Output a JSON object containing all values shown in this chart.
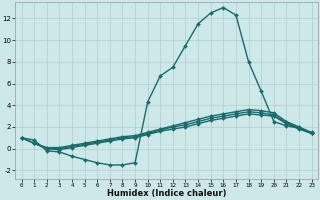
{
  "xlabel": "Humidex (Indice chaleur)",
  "ylabel": "",
  "xlim": [
    -0.5,
    23.5
  ],
  "ylim": [
    -2.8,
    13.5
  ],
  "xticks": [
    0,
    1,
    2,
    3,
    4,
    5,
    6,
    7,
    8,
    9,
    10,
    11,
    12,
    13,
    14,
    15,
    16,
    17,
    18,
    19,
    20,
    21,
    22,
    23
  ],
  "yticks": [
    -2,
    0,
    2,
    4,
    6,
    8,
    10,
    12
  ],
  "background_color": "#cde8e8",
  "grid_color": "#b8d0d0",
  "line_color": "#1a6b6b",
  "line_width": 1.0,
  "marker": "D",
  "marker_size": 2.0,
  "lines": [
    [
      1,
      0.8,
      -0.2,
      -0.3,
      -0.7,
      -1.0,
      -1.3,
      -1.5,
      -1.5,
      -1.3,
      4.3,
      6.7,
      7.5,
      9.5,
      11.5,
      12.5,
      13.0,
      12.3,
      8.0,
      5.3,
      2.5,
      2.1,
      1.9,
      1.4
    ],
    [
      1,
      0.5,
      0.0,
      -0.1,
      0.1,
      0.3,
      0.5,
      0.7,
      0.9,
      1.0,
      1.3,
      1.6,
      1.8,
      2.0,
      2.3,
      2.6,
      2.8,
      3.0,
      3.2,
      3.1,
      3.0,
      2.3,
      1.8,
      1.4
    ],
    [
      1,
      0.5,
      0.0,
      0.0,
      0.2,
      0.4,
      0.6,
      0.8,
      1.0,
      1.1,
      1.4,
      1.7,
      2.0,
      2.2,
      2.5,
      2.8,
      3.0,
      3.2,
      3.4,
      3.3,
      3.1,
      2.4,
      1.9,
      1.4
    ],
    [
      1,
      0.5,
      0.1,
      0.1,
      0.3,
      0.5,
      0.7,
      0.9,
      1.1,
      1.2,
      1.5,
      1.8,
      2.1,
      2.4,
      2.7,
      3.0,
      3.2,
      3.4,
      3.6,
      3.5,
      3.3,
      2.5,
      2.0,
      1.5
    ]
  ]
}
